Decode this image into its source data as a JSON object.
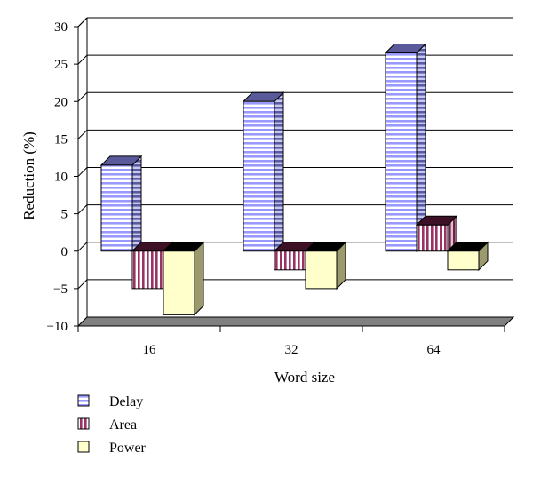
{
  "chart_data": {
    "type": "bar",
    "style": "3d-clustered",
    "categories": [
      "16",
      "32",
      "64"
    ],
    "series": [
      {
        "name": "Delay",
        "values": [
          11.5,
          20,
          26.5
        ],
        "color": "#9999ff",
        "pattern": "horizontal-stripes"
      },
      {
        "name": "Area",
        "values": [
          -5,
          -2.5,
          3.5
        ],
        "color": "#993366",
        "pattern": "vertical-stripes"
      },
      {
        "name": "Power",
        "values": [
          -8.5,
          -5,
          -2.5
        ],
        "color": "#ffffcc",
        "pattern": "solid"
      }
    ],
    "xlabel": "Word size",
    "ylabel": "Reduction (%)",
    "ylim": [
      -10,
      30
    ],
    "yticks": [
      "30",
      "25",
      "20",
      "15",
      "10",
      "5",
      "0",
      "−5",
      "−10"
    ],
    "grid": true,
    "legend_position": "bottom-left"
  }
}
